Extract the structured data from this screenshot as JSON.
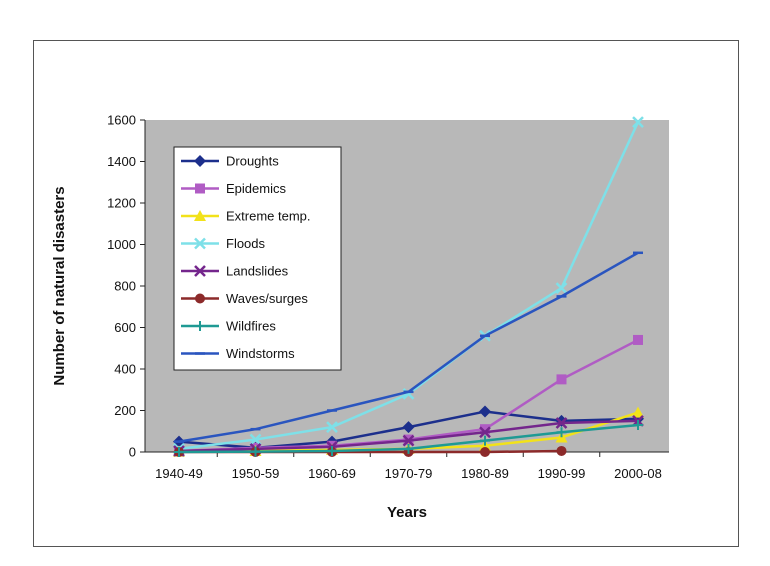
{
  "chart_data": {
    "type": "line",
    "title": "",
    "xlabel": "Years",
    "ylabel": "Number of natural disasters",
    "categories": [
      "1940-49",
      "1950-59",
      "1960-69",
      "1970-79",
      "1980-89",
      "1990-99",
      "2000-08"
    ],
    "ylim": [
      0,
      1600
    ],
    "yticks": [
      "0",
      "200",
      "400",
      "600",
      "800",
      "1000",
      "1200",
      "1400",
      "1600"
    ],
    "grid": false,
    "legend_position": "top-left",
    "plot_background": "#b8b8b8",
    "series": [
      {
        "name": "Droughts",
        "color": "#1c2f8c",
        "marker": "diamond",
        "values": [
          50,
          20,
          50,
          120,
          195,
          150,
          160
        ]
      },
      {
        "name": "Epidemics",
        "color": "#b05cc4",
        "marker": "square",
        "values": [
          5,
          20,
          30,
          60,
          110,
          350,
          540
        ]
      },
      {
        "name": "Extreme temp.",
        "color": "#f2e21a",
        "marker": "triangle",
        "values": [
          2,
          5,
          10,
          15,
          30,
          70,
          190
        ]
      },
      {
        "name": "Floods",
        "color": "#7ee0e8",
        "marker": "x",
        "values": [
          15,
          60,
          120,
          280,
          560,
          790,
          1590
        ]
      },
      {
        "name": "Landslides",
        "color": "#74268c",
        "marker": "x",
        "values": [
          5,
          15,
          25,
          55,
          95,
          140,
          150
        ]
      },
      {
        "name": "Waves/surges",
        "color": "#8c2a2a",
        "marker": "circle",
        "values": [
          0,
          0,
          0,
          0,
          0,
          5,
          null
        ]
      },
      {
        "name": "Wildfires",
        "color": "#1f9a94",
        "marker": "plus",
        "values": [
          0,
          2,
          5,
          15,
          55,
          95,
          130
        ]
      },
      {
        "name": "Windstorms",
        "color": "#2a55bf",
        "marker": "dash",
        "values": [
          50,
          110,
          200,
          290,
          560,
          750,
          960
        ]
      }
    ]
  }
}
